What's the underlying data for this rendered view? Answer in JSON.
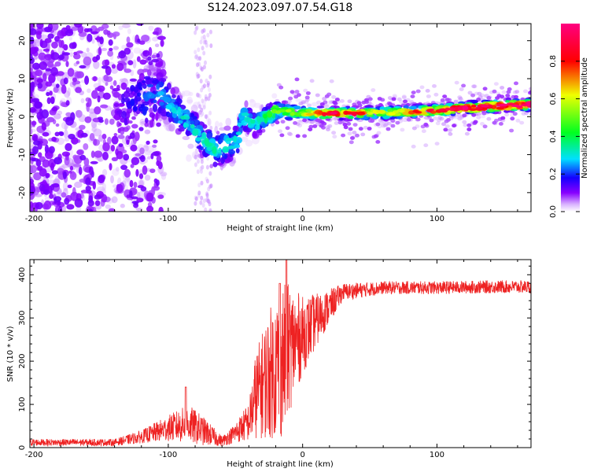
{
  "figure": {
    "title": "S124.2023.097.07.54.G18"
  },
  "chart_data": [
    {
      "type": "heatmap",
      "title": "S124.2023.097.07.54.G18",
      "xlabel": "Height of straight line (km)",
      "ylabel": "Frequency (Hz)",
      "xlim": [
        -203,
        170
      ],
      "ylim": [
        -25,
        24.5
      ],
      "xticks": [
        -200,
        -100,
        0,
        100
      ],
      "yticks": [
        -20,
        -10,
        0,
        10,
        20
      ],
      "colorbar": {
        "label": "Normalized spectral amplitude",
        "ticks": [
          0.0,
          0.2,
          0.4,
          0.6,
          0.8
        ],
        "range": [
          0,
          1
        ],
        "colormap": [
          "#ffffff",
          "#d8b0ff",
          "#8800ff",
          "#1400ff",
          "#00e0ff",
          "#00ff20",
          "#f0ff00",
          "#ff0000",
          "#ff0080"
        ]
      },
      "ridge": [
        {
          "x": -200,
          "y": 0,
          "amp": 0.05,
          "spread": 25
        },
        {
          "x": -140,
          "y": 3,
          "amp": 0.1,
          "spread": 10
        },
        {
          "x": -105,
          "y": 6,
          "amp": 0.25,
          "spread": 4
        },
        {
          "x": -90,
          "y": 0,
          "amp": 0.28,
          "spread": 3
        },
        {
          "x": -65,
          "y": -9,
          "amp": 0.3,
          "spread": 3
        },
        {
          "x": -48,
          "y": -6,
          "amp": 0.28,
          "spread": 3
        },
        {
          "x": -45,
          "y": 0,
          "amp": 0.3,
          "spread": 2.5
        },
        {
          "x": -35,
          "y": -2,
          "amp": 0.3,
          "spread": 2
        },
        {
          "x": -20,
          "y": 1.5,
          "amp": 0.45,
          "spread": 1.5
        },
        {
          "x": 0,
          "y": 1,
          "amp": 0.55,
          "spread": 1
        },
        {
          "x": 25,
          "y": 0.8,
          "amp": 0.85,
          "spread": 0.9
        },
        {
          "x": 60,
          "y": 1.0,
          "amp": 0.55,
          "spread": 1
        },
        {
          "x": 95,
          "y": 1.5,
          "amp": 0.8,
          "spread": 0.9
        },
        {
          "x": 130,
          "y": 2.5,
          "amp": 0.9,
          "spread": 0.9
        },
        {
          "x": 170,
          "y": 3.2,
          "amp": 0.95,
          "spread": 0.9
        }
      ]
    },
    {
      "type": "line",
      "xlabel": "Height of straight line (km)",
      "ylabel": "SNR (10 * v/v)",
      "xlim": [
        -203,
        170
      ],
      "ylim": [
        0,
        435
      ],
      "xticks": [
        -200,
        -100,
        0,
        100
      ],
      "yticks": [
        0,
        100,
        200,
        300,
        400
      ],
      "color": "#ee2222",
      "envelope": [
        {
          "x": -200,
          "mean": 12,
          "noise": 8
        },
        {
          "x": -140,
          "mean": 12,
          "noise": 8
        },
        {
          "x": -120,
          "mean": 25,
          "noise": 15
        },
        {
          "x": -100,
          "mean": 45,
          "noise": 30
        },
        {
          "x": -85,
          "mean": 55,
          "noise": 45
        },
        {
          "x": -75,
          "mean": 40,
          "noise": 35
        },
        {
          "x": -60,
          "mean": 15,
          "noise": 12
        },
        {
          "x": -52,
          "mean": 30,
          "noise": 20
        },
        {
          "x": -40,
          "mean": 60,
          "noise": 45
        },
        {
          "x": -35,
          "mean": 120,
          "noise": 100
        },
        {
          "x": -25,
          "mean": 170,
          "noise": 150
        },
        {
          "x": -15,
          "mean": 200,
          "noise": 180
        },
        {
          "x": -10,
          "mean": 230,
          "noise": 150
        },
        {
          "x": 0,
          "mean": 260,
          "noise": 90
        },
        {
          "x": 15,
          "mean": 310,
          "noise": 50
        },
        {
          "x": 30,
          "mean": 360,
          "noise": 20
        },
        {
          "x": 60,
          "mean": 370,
          "noise": 15
        },
        {
          "x": 100,
          "mean": 370,
          "noise": 15
        },
        {
          "x": 140,
          "mean": 372,
          "noise": 15
        },
        {
          "x": 170,
          "mean": 372,
          "noise": 15
        }
      ],
      "peaks": [
        {
          "x": -87,
          "y": 140
        },
        {
          "x": -12,
          "y": 435
        },
        {
          "x": -17,
          "y": 380
        }
      ]
    }
  ]
}
